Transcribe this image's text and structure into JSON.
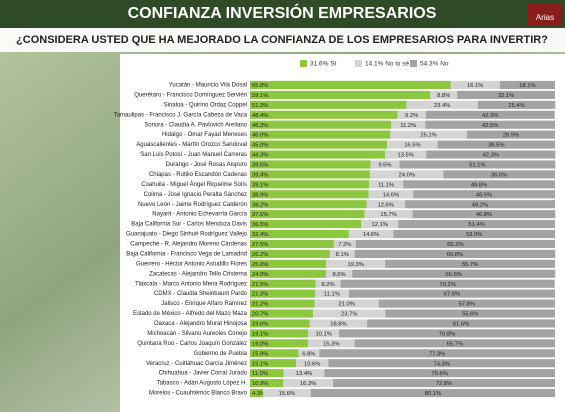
{
  "header": {
    "title": "CONFIANZA INVERSIÓN EMPRESARIOS",
    "logo": "Arias"
  },
  "chart_data": {
    "type": "stacked-bar-horizontal",
    "title": "¿CONSIDERA USTED QUE HA MEJORADO LA CONFIANZA DE LOS EMPRESARIOS PARA INVERTIR?",
    "xlim": [
      0,
      100
    ],
    "categories": [
      "Yucatán - Mauricio Vila Dosal",
      "Querétaro - Francisco Domínguez Servién",
      "Sinaloa - Quirino Ordaz Coppel",
      "Tamaulipas - Francisco J. García Cabeza de Vaca",
      "Sonora - Claudia A. Pavlovich Arellano",
      "Hidalgo - Omar Fayad Meneses",
      "Aguascalientes - Martín Orozco Sandoval",
      "San Luis Potosí - Juan Manuel Carreras",
      "Durango - José Rosas Aispuro",
      "Chiapas - Rutilio Escandón Cadenas",
      "Coahuila - Miguel Ángel Riquelme Solís",
      "Colima - José Ignacio Peralta Sánchez",
      "Nuevo León - Jaime Rodríguez Calderón",
      "Nayarit - Antonio Echevarría García",
      "Baja California Sur - Carlos Mendoza Davis",
      "Guanajuato - Diego Sinhué Rodríguez Vallejo",
      "Campeche - R. Alejandro Moreno Cárdenas",
      "Baja California - Francisco Vega de Lamadrid",
      "Guerrero - Héctor Antonio Astudillo Flores",
      "Zacatecas - Alejandro Tello Cristerna",
      "Tlaxcala - Marco Antonio Mena Rodríguez",
      "CDMX - Claudia Sheinbaum Pardo",
      "Jalisco - Enrique Alfaro Ramírez",
      "Estado de México - Alfredo del Mazo Maza",
      "Oaxaca - Alejandro Murat Hinojosa",
      "Michoacán - Silvano Aureoles Conejo",
      "Quintana Roo - Carlos Joaquín González",
      "Gobierno de Puebla",
      "Veracruz - Cuitláhuac García Jiménez",
      "Chihuahua - Javier Corral Jurado",
      "Tabasco - Adán Augusto López H.",
      "Morelos - Cuauhtémoc Blanco Bravo"
    ],
    "series": [
      {
        "name": "31.6% Sí",
        "color": "#8dc63f",
        "values": [
          65.8,
          59.1,
          51.3,
          48.4,
          46.3,
          46.0,
          45.0,
          44.3,
          39.5,
          39.4,
          39.1,
          38.9,
          38.2,
          37.6,
          36.5,
          32.4,
          27.5,
          26.2,
          25.0,
          24.9,
          21.5,
          21.3,
          21.2,
          20.7,
          19.6,
          19.1,
          19.0,
          15.9,
          15.1,
          11.0,
          10.9,
          4.3
        ],
        "value_labels": [
          "65.8%",
          "59.1%",
          "51.3%",
          "48.4%",
          "46.3%",
          "46.0%",
          "45.0%",
          "44.3%",
          "39.5%",
          "39.4%",
          "39.1%",
          "38.9%",
          "38.2%",
          "37.6%",
          "36.5%",
          "32.4%",
          "27.5%",
          "26.2%",
          "25.0%",
          "24.9%",
          "21.5%",
          "21.3%",
          "21.2%",
          "20.7%",
          "19.6%",
          "19.1%",
          "19.0%",
          "15.9%",
          "15.1%",
          "11.0%",
          "10.9%",
          "4.3%"
        ]
      },
      {
        "name": "14.1% No lo sé",
        "color": "#d4d4d4",
        "values": [
          16.1,
          8.8,
          23.4,
          9.2,
          11.2,
          25.1,
          16.5,
          13.5,
          9.5,
          24.0,
          11.1,
          14.6,
          12.6,
          15.7,
          12.1,
          14.6,
          7.2,
          8.1,
          19.3,
          8.6,
          8.2,
          11.1,
          21.0,
          23.7,
          18.8,
          10.1,
          15.3,
          6.8,
          10.6,
          13.4,
          16.3,
          15.6
        ],
        "value_labels": [
          "16.1%",
          "8.8%",
          "23.4%",
          "9.2%",
          "11.2%",
          "25.1%",
          "16.5%",
          "13.5%",
          "9.5%",
          "24.0%",
          "11.1%",
          "14.6%",
          "12.6%",
          "15.7%",
          "12.1%",
          "14.6%",
          "7.2%",
          "8.1%",
          "19.3%",
          "8.6%",
          "8.2%",
          "11.1%",
          "21.0%",
          "23.7%",
          "18.8%",
          "10.1%",
          "15.3%",
          "6.8%",
          "10.6%",
          "13.4%",
          "16.3%",
          "15.6%"
        ]
      },
      {
        "name": "54.3% No",
        "color": "#a3a3a3",
        "values": [
          18.1,
          32.1,
          25.4,
          42.3,
          42.5,
          28.9,
          38.5,
          42.3,
          51.1,
          36.6,
          49.8,
          46.5,
          49.2,
          46.8,
          51.4,
          53.0,
          65.3,
          65.8,
          55.7,
          66.6,
          70.2,
          67.6,
          57.8,
          55.6,
          61.6,
          70.8,
          65.7,
          77.3,
          74.3,
          75.6,
          72.8,
          80.1
        ],
        "value_labels": [
          "18.1%",
          "32.1%",
          "25.4%",
          "42.3%",
          "42.5%",
          "28.9%",
          "38.5%",
          "42.3%",
          "51.1%",
          "36.6%",
          "49.8%",
          "46.5%",
          "49.2%",
          "46.8%",
          "51.4%",
          "53.0%",
          "65.3%",
          "65.8%",
          "55.7%",
          "66.6%",
          "70.2%",
          "67.6%",
          "57.8%",
          "55.6%",
          "61.6%",
          "70.8%",
          "65.7%",
          "77.3%",
          "74.3%",
          "75.6%",
          "72.8%",
          "80.1%"
        ]
      }
    ]
  }
}
